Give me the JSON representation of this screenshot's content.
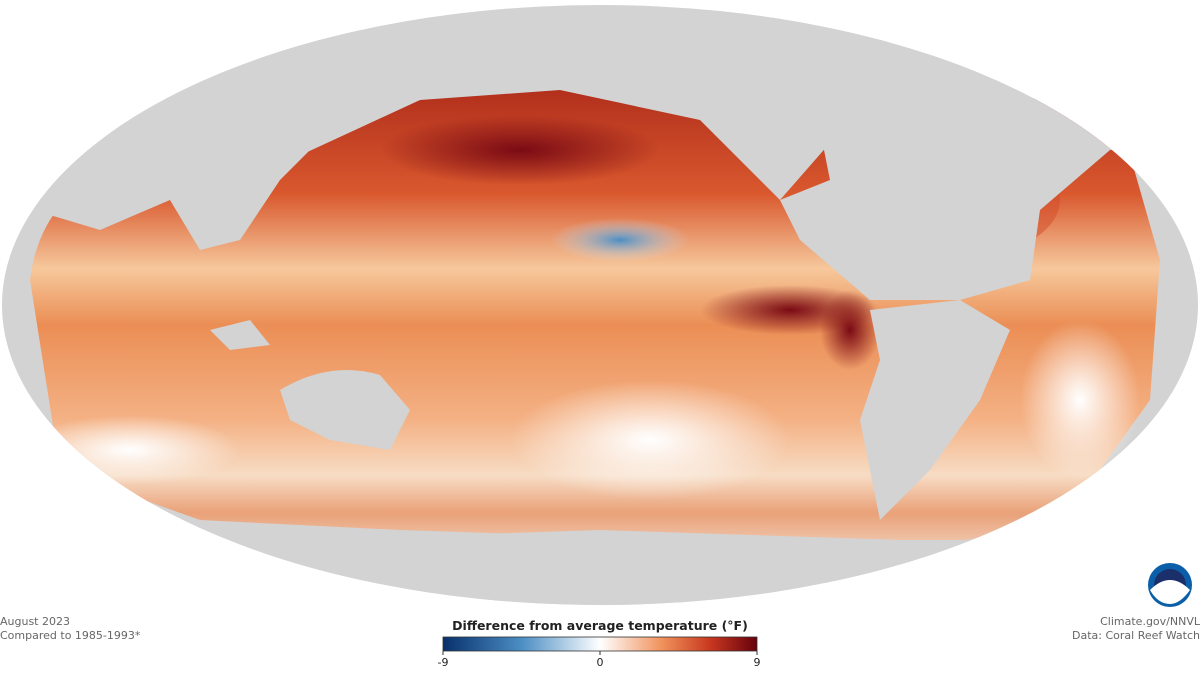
{
  "map": {
    "legend": {
      "title": "Difference from average temperature (°F)",
      "min": -9,
      "max": 9,
      "ticks": [
        -9,
        0,
        9
      ]
    }
  },
  "footer": {
    "left": [
      "August 2023",
      "Compared to 1985-1993*"
    ],
    "right": [
      "Climate.gov/NNVL",
      "Data: Coral Reef Watch"
    ]
  }
}
